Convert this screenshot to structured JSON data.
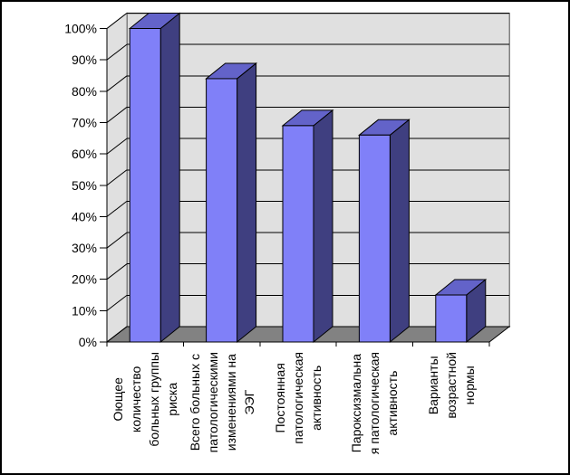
{
  "page": {
    "background": "#FFFFFF",
    "frame_color": "#000000"
  },
  "chart_data": {
    "type": "bar",
    "style": "excel-3d-column",
    "title": "",
    "xlabel": "",
    "ylabel": "",
    "legend": false,
    "grid": true,
    "categories": [
      "Оющее количество больных группы риска",
      "Всего больных с патологическими изменениями на ЭЭГ",
      "Постоянная патологическая активность",
      "Пароксизмальна я патологическая активность",
      "Варианты возрастной нормы"
    ],
    "category_label_lines": [
      [
        "Оющее",
        "количество",
        "больных группы",
        "риска"
      ],
      [
        "Всего больных с",
        "патологическими",
        "изменениями на",
        "ЭЭГ"
      ],
      [
        "Постоянная",
        "патологическая",
        "активность"
      ],
      [
        "Пароксизмальна",
        "я патологическая",
        "активность"
      ],
      [
        "Варианты",
        "возрастной",
        "нормы"
      ]
    ],
    "values": [
      100,
      84,
      69,
      66,
      15
    ],
    "unit": "%",
    "ylim": [
      0,
      100
    ],
    "y_tick_step": 10,
    "y_tick_labels": [
      "0%",
      "10%",
      "20%",
      "30%",
      "40%",
      "50%",
      "60%",
      "70%",
      "80%",
      "90%",
      "100%"
    ],
    "colors": {
      "bar_front": "#8080F8",
      "bar_top": "#6363C9",
      "bar_side": "#3F3F80",
      "wall": "#E0E0E0",
      "wall_border": "#808080",
      "floor": "#828282",
      "gridline": "#000000",
      "axis": "#000000",
      "text": "#000000"
    }
  }
}
